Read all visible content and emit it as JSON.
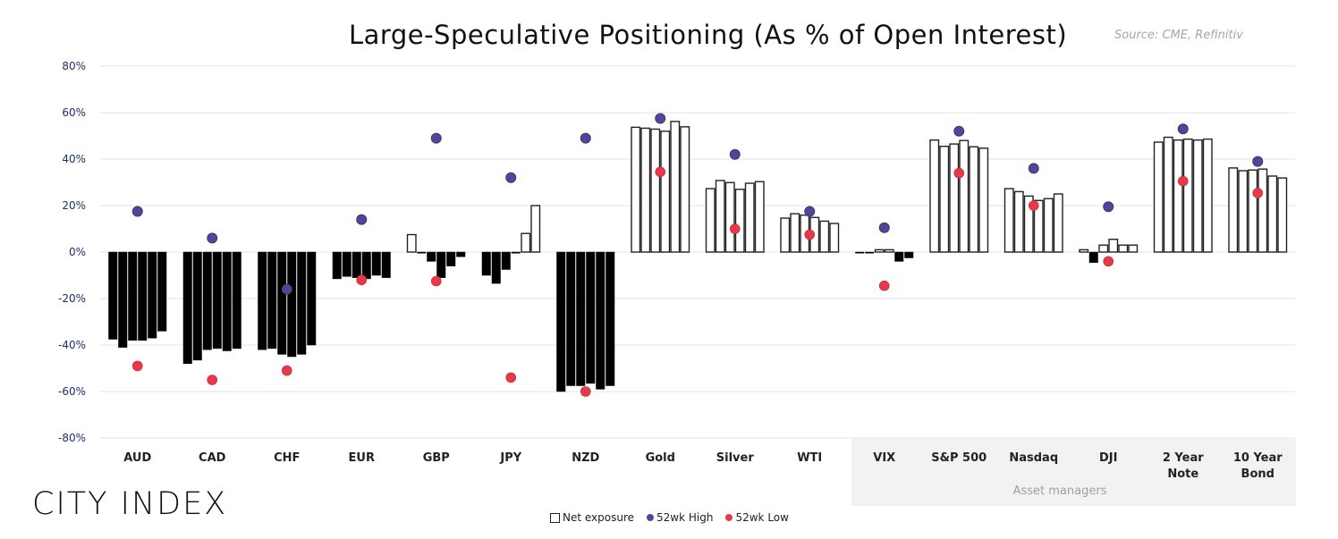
{
  "title": "Large-Speculative Positioning (As % of Open Interest)",
  "source": "Source: CME, Refinitiv",
  "logo": "CITY INDEX",
  "chart_data": {
    "type": "bar",
    "title": "Large-Speculative Positioning (As % of Open Interest)",
    "ylabel": "% of Open Interest",
    "ylim": [
      -80,
      80
    ],
    "yticks": [
      -80,
      -60,
      -40,
      -20,
      0,
      20,
      40,
      60,
      80
    ],
    "ytick_labels": [
      "-80%",
      "-60%",
      "-40%",
      "-20%",
      "0%",
      "20%",
      "40%",
      "60%",
      "80%"
    ],
    "grid": true,
    "legend_position": "bottom-center",
    "group_note": "Asset managers",
    "group_note_categories": [
      "VIX",
      "S&P 500",
      "Nasdaq",
      "DJI",
      "2 Year Note",
      "10 Year Bond"
    ],
    "categories": [
      "AUD",
      "CAD",
      "CHF",
      "EUR",
      "GBP",
      "JPY",
      "NZD",
      "Gold",
      "Silver",
      "WTI",
      "VIX",
      "S&P 500",
      "Nasdaq",
      "DJI",
      "2 Year Note",
      "10 Year Bond"
    ],
    "category_labels": [
      [
        "AUD"
      ],
      [
        "CAD"
      ],
      [
        "CHF"
      ],
      [
        "EUR"
      ],
      [
        "GBP"
      ],
      [
        "JPY"
      ],
      [
        "NZD"
      ],
      [
        "Gold"
      ],
      [
        "Silver"
      ],
      [
        "WTI"
      ],
      [
        "VIX"
      ],
      [
        "S&P 500"
      ],
      [
        "Nasdaq"
      ],
      [
        "DJI"
      ],
      [
        "2 Year",
        "Note"
      ],
      [
        "10 Year",
        "Bond"
      ]
    ],
    "series": [
      {
        "name": "Net exposure",
        "type": "bar",
        "values": [
          [
            -37.5,
            -41,
            -38,
            -38,
            -37,
            -34
          ],
          [
            -48,
            -46.5,
            -42,
            -41.5,
            -42.5,
            -41.5
          ],
          [
            -42,
            -41.5,
            -44,
            -45,
            -44,
            -40
          ],
          [
            -11.5,
            -10.5,
            -11,
            -11.5,
            -10,
            -11
          ],
          [
            7.5,
            -0.3,
            -4,
            -11,
            -6,
            -2
          ],
          [
            -10,
            -13.5,
            -7.5,
            -0.5,
            8,
            20
          ],
          [
            -60,
            -57.5,
            -57.5,
            -56.5,
            -59,
            -57.5
          ],
          [
            53.7,
            53.3,
            52.9,
            52,
            56.2,
            53.9
          ],
          [
            27.3,
            30.8,
            29.9,
            27,
            29.6,
            30.3
          ],
          [
            14.6,
            16.5,
            15.9,
            14.9,
            13.3,
            12.3
          ],
          [
            -0.3,
            -0.3,
            1,
            1,
            -4,
            -2.5
          ],
          [
            48.2,
            45.5,
            46.5,
            48,
            45.3,
            44.7
          ],
          [
            27.3,
            26,
            24.1,
            22.2,
            23,
            25
          ],
          [
            1,
            -4.5,
            3,
            5.5,
            3,
            3
          ],
          [
            47.3,
            49.4,
            48.2,
            48.6,
            48.2,
            48.6
          ],
          [
            36.2,
            35,
            35.3,
            35.7,
            32.7,
            31.9
          ]
        ]
      },
      {
        "name": "52wk High",
        "type": "scatter",
        "color": "#5b3fa0",
        "values": [
          17.5,
          6,
          -16,
          14,
          49,
          32,
          49,
          57.5,
          42,
          17.5,
          10.5,
          52,
          36,
          19.5,
          53,
          39
        ]
      },
      {
        "name": "52wk Low",
        "type": "scatter",
        "color": "#e8394a",
        "values": [
          -49,
          -55,
          -51,
          -12,
          -12.5,
          -54,
          -60,
          34.5,
          10,
          7.5,
          -14.5,
          34,
          20,
          -4,
          30.5,
          25.4
        ]
      }
    ]
  }
}
